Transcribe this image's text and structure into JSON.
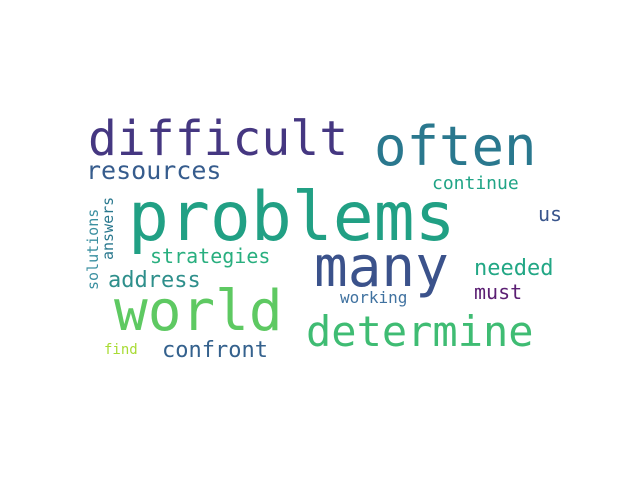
{
  "words": {
    "problems": {
      "text": "problems",
      "color": "#21a084"
    },
    "difficult": {
      "text": "difficult",
      "color": "#453781"
    },
    "often": {
      "text": "often",
      "color": "#2a788e"
    },
    "many": {
      "text": "many",
      "color": "#3b528b"
    },
    "world": {
      "text": "world",
      "color": "#5ec962"
    },
    "determine": {
      "text": "determine",
      "color": "#3fbc73"
    },
    "resources": {
      "text": "resources",
      "color": "#365c8d"
    },
    "strategies": {
      "text": "strategies",
      "color": "#29af7f"
    },
    "address": {
      "text": "address",
      "color": "#2e8f8b"
    },
    "confront": {
      "text": "confront",
      "color": "#34618d"
    },
    "continue": {
      "text": "continue",
      "color": "#20a486"
    },
    "us": {
      "text": "us",
      "color": "#39558c"
    },
    "needed": {
      "text": "needed",
      "color": "#22a785"
    },
    "must": {
      "text": "must",
      "color": "#5b1f73"
    },
    "working": {
      "text": "working",
      "color": "#4072a0"
    },
    "find": {
      "text": "find",
      "color": "#a8db34"
    },
    "solutions": {
      "text": "solutions",
      "color": "#3a8fa0"
    },
    "answers": {
      "text": "answers",
      "color": "#2a788e"
    }
  }
}
